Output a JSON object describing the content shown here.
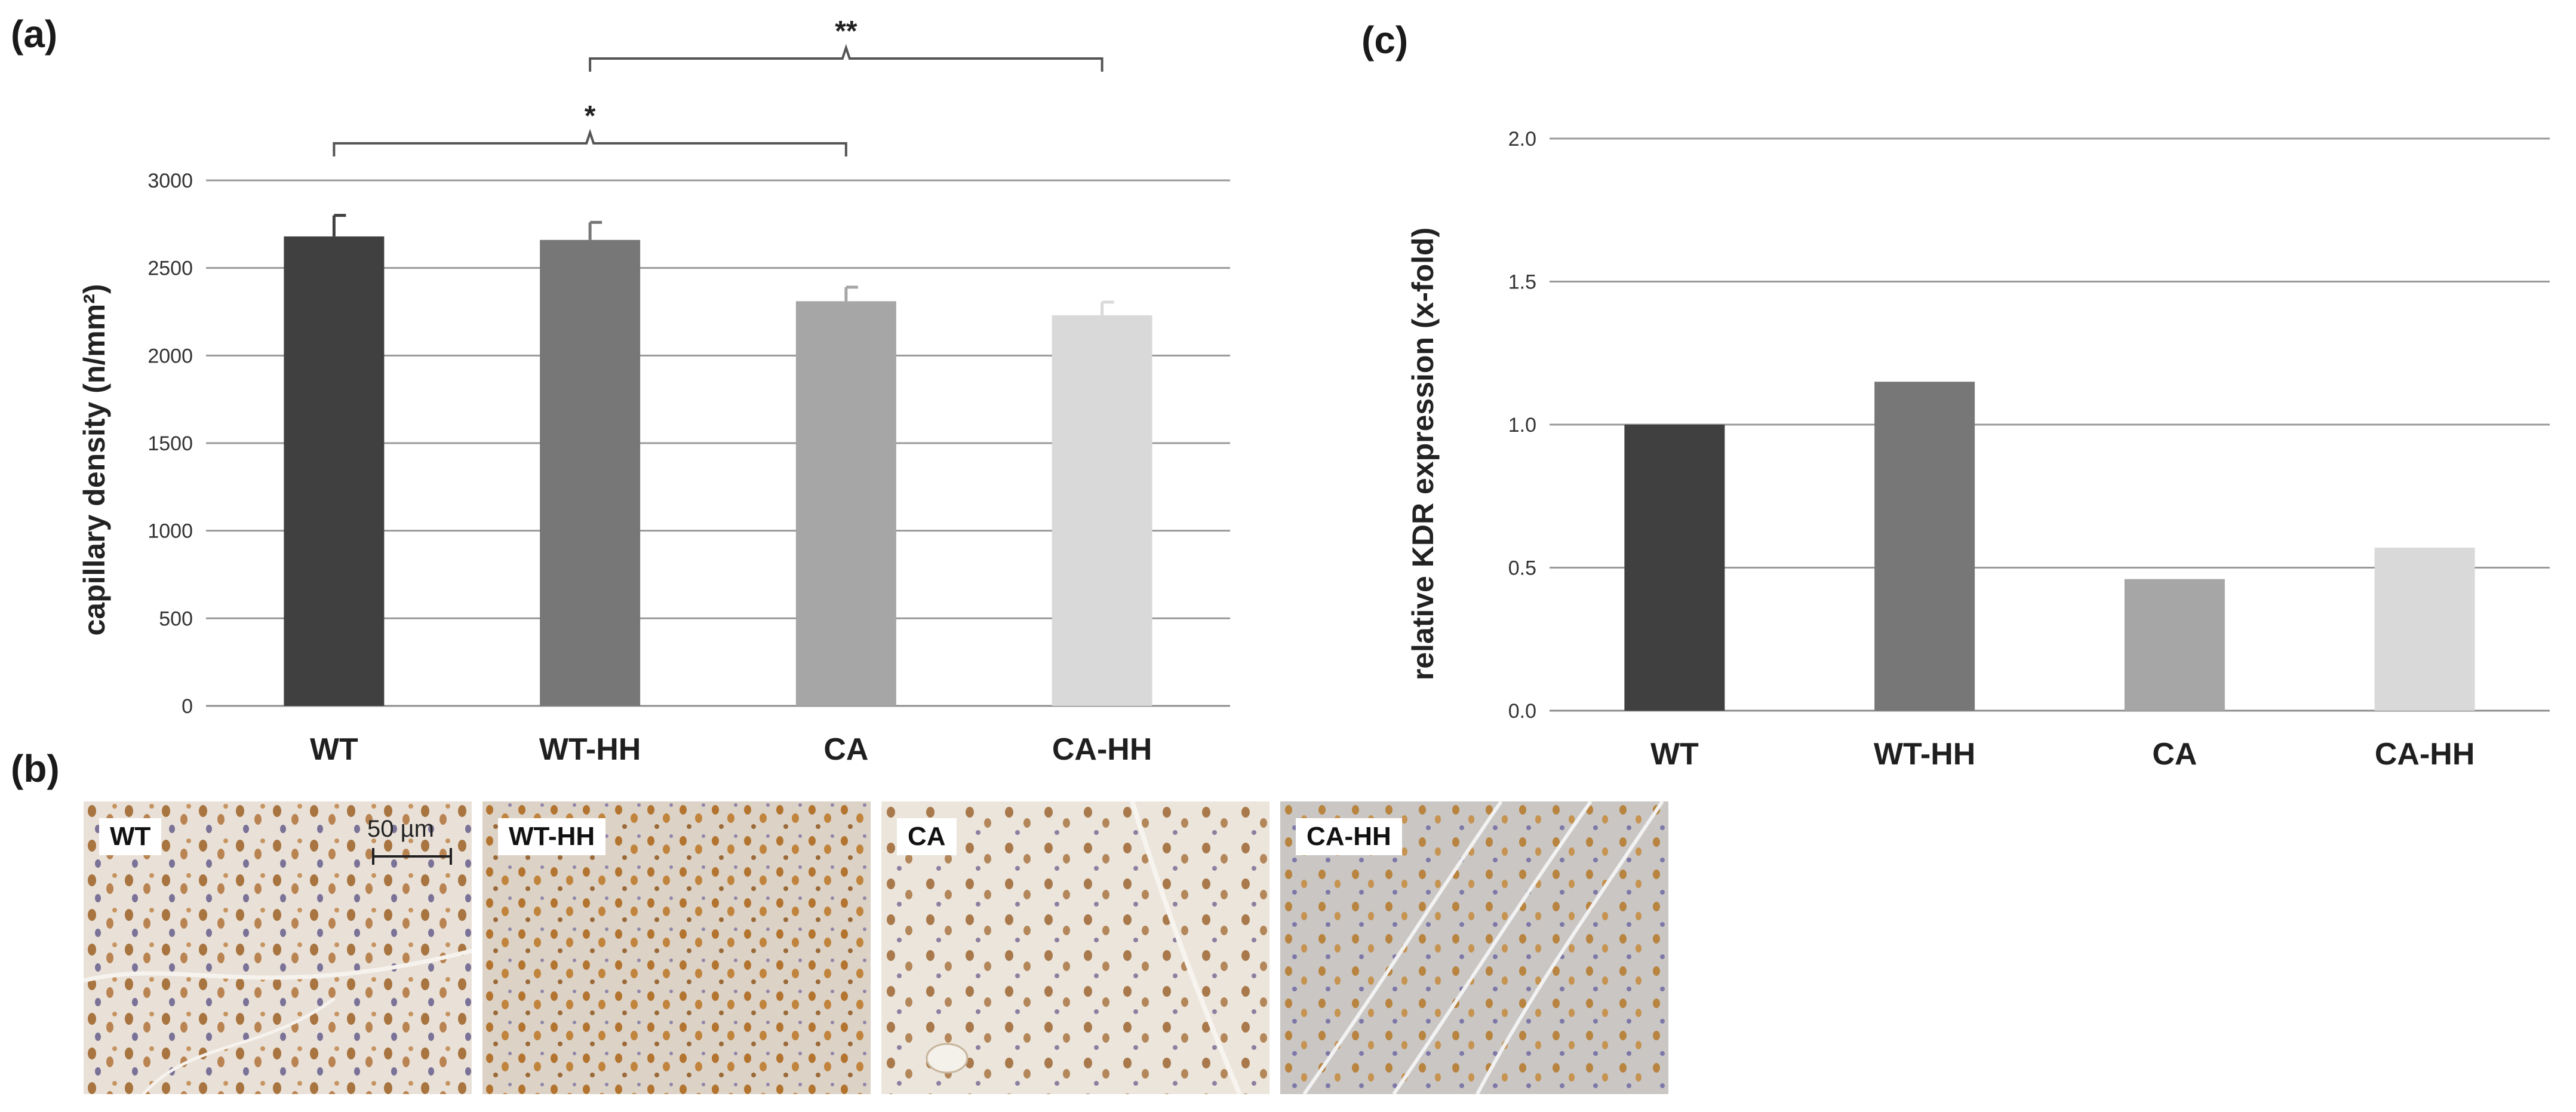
{
  "panels": {
    "a": "(a)",
    "b": "(b)",
    "c": "(c)"
  },
  "chart_data": [
    {
      "id": "a",
      "type": "bar",
      "title": "",
      "xlabel": "",
      "ylabel": "capillary density  (n/mm²)",
      "categories": [
        "WT",
        "WT-HH",
        "CA",
        "CA-HH"
      ],
      "values": [
        2680,
        2660,
        2310,
        2230
      ],
      "error": [
        120,
        100,
        80,
        75
      ],
      "ylim": [
        0,
        3000
      ],
      "yticks": [
        "0",
        "500",
        "1000",
        "1500",
        "2000",
        "2500",
        "3000"
      ],
      "colors": [
        "#404040",
        "#777777",
        "#a6a6a6",
        "#d9d9d9"
      ],
      "grid": true,
      "significance": [
        {
          "from": "WT",
          "to": "CA",
          "label": "*"
        },
        {
          "from": "WT-HH",
          "to": "CA-HH",
          "label": "**"
        }
      ]
    },
    {
      "id": "c",
      "type": "bar",
      "title": "",
      "xlabel": "",
      "ylabel": "relative KDR expression  (x-fold)",
      "categories": [
        "WT",
        "WT-HH",
        "CA",
        "CA-HH"
      ],
      "values": [
        1.0,
        1.15,
        0.46,
        0.57
      ],
      "ylim": [
        0,
        2.0
      ],
      "yticks": [
        "0.0",
        "0.5",
        "1.0",
        "1.5",
        "2.0"
      ],
      "colors": [
        "#404040",
        "#777777",
        "#a6a6a6",
        "#d9d9d9"
      ],
      "grid": true
    }
  ],
  "micrographs": [
    {
      "label": "WT",
      "scale_bar": "50 µm"
    },
    {
      "label": "WT-HH"
    },
    {
      "label": "CA"
    },
    {
      "label": "CA-HH"
    }
  ]
}
